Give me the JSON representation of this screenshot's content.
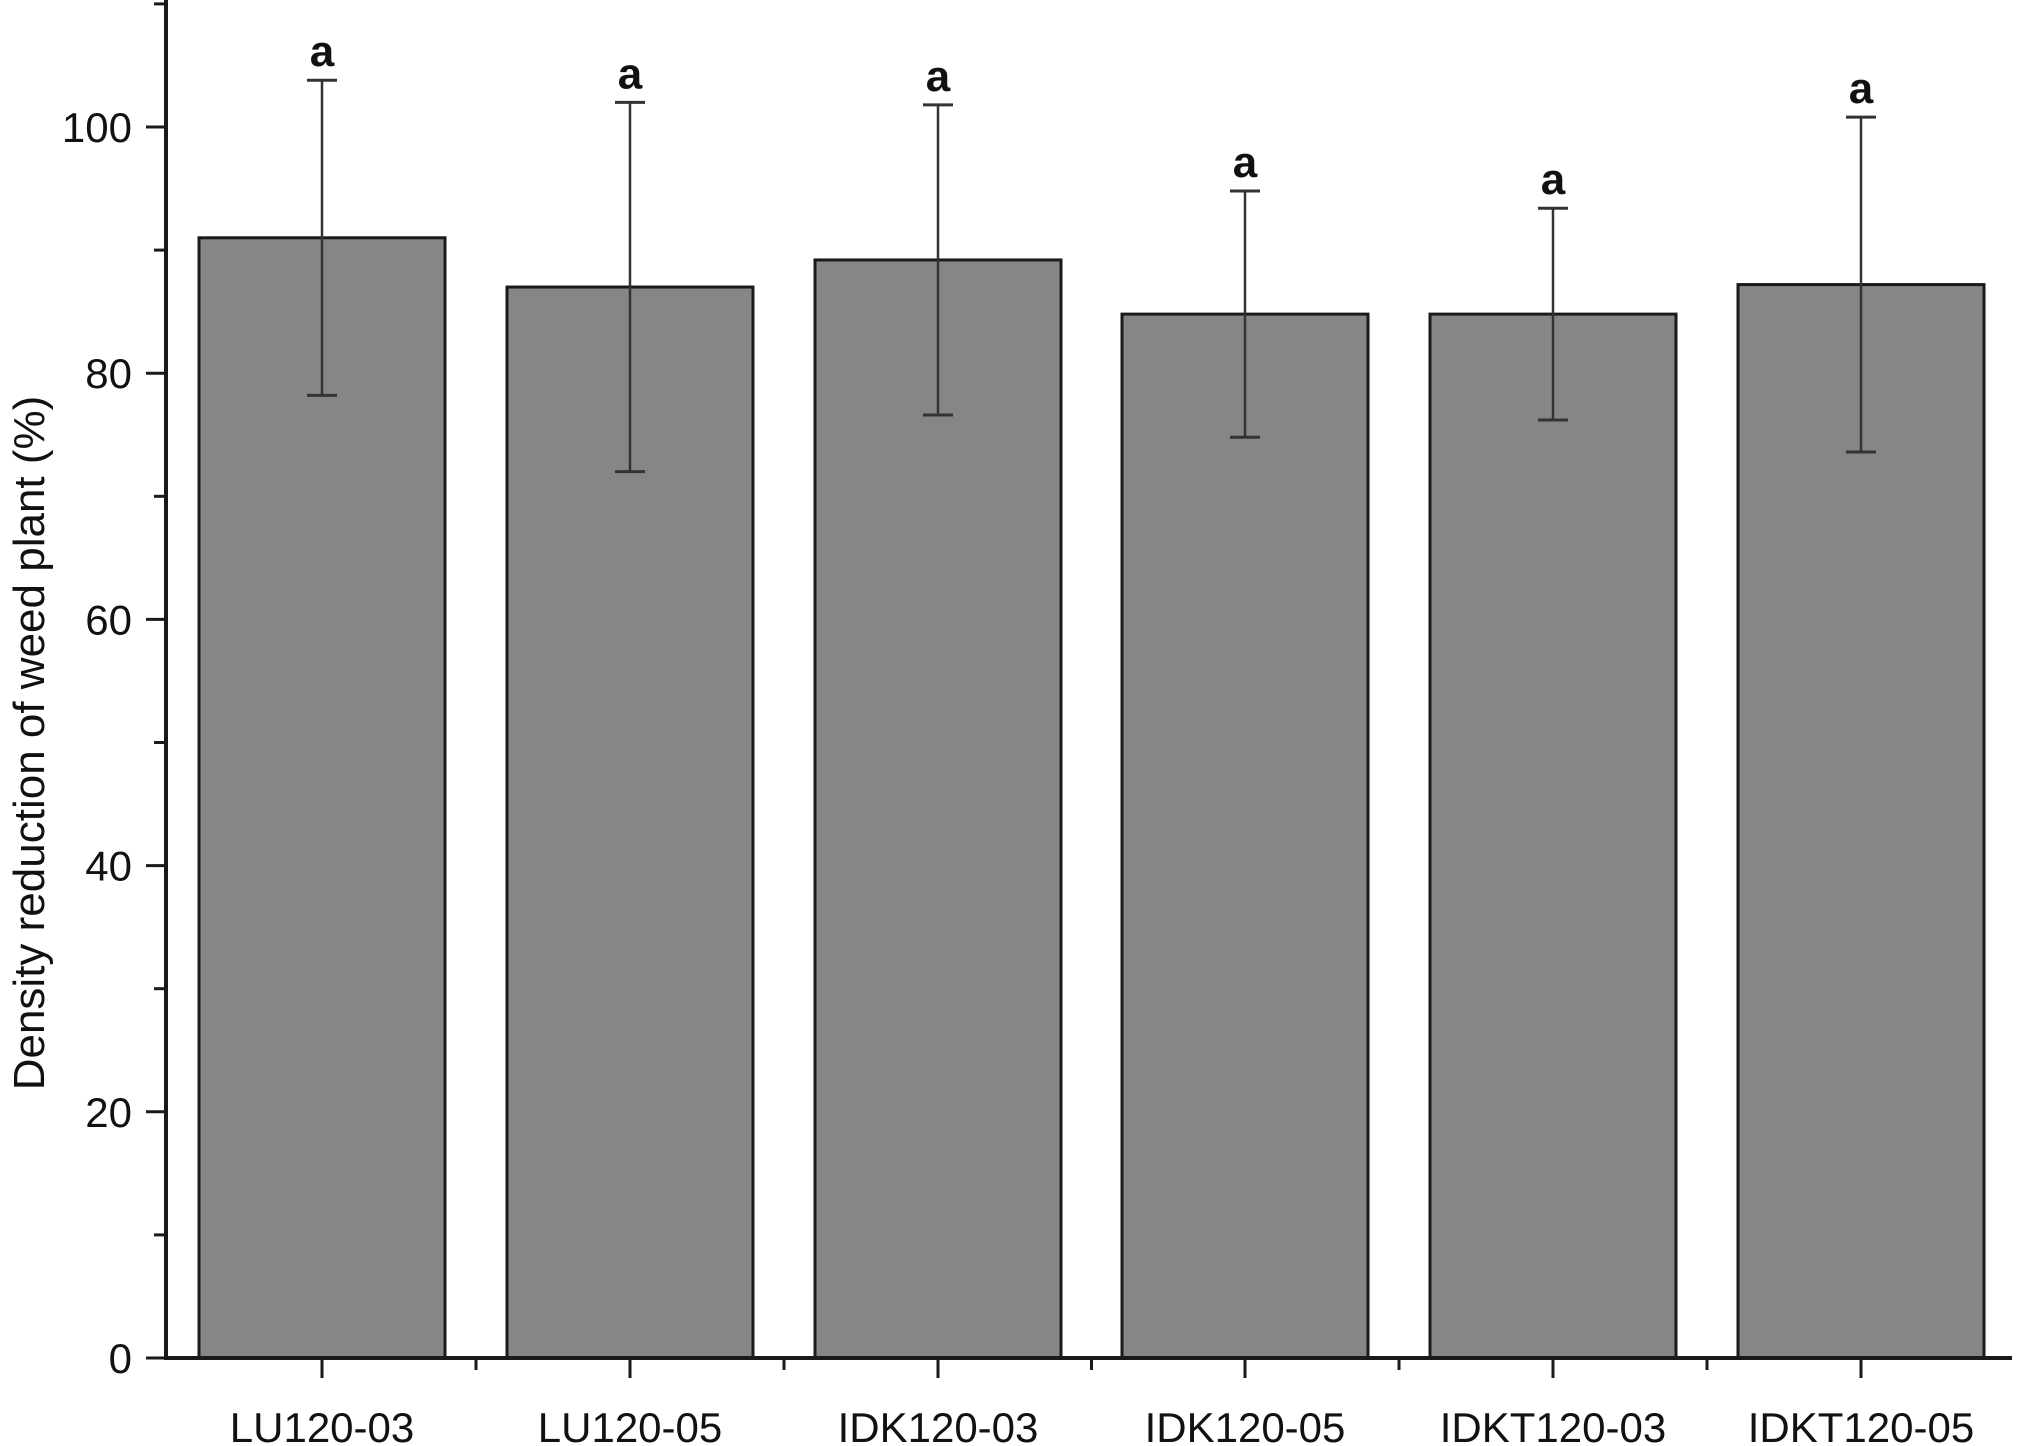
{
  "chart_data": {
    "type": "bar",
    "title": "",
    "xlabel": "",
    "ylabel": "Density reduction of weed plant (%)",
    "categories": [
      "LU120-03",
      "LU120-05",
      "IDK120-03",
      "IDK120-05",
      "IDKT120-03",
      "IDKT120-05"
    ],
    "values": [
      91.0,
      87.0,
      89.2,
      84.8,
      84.8,
      87.2
    ],
    "error_bars": [
      12.8,
      15.0,
      12.6,
      10.0,
      8.6,
      13.6
    ],
    "significance_labels": [
      "a",
      "a",
      "a",
      "a",
      "a",
      "a"
    ],
    "ylim": [
      0,
      110
    ],
    "yticks": [
      0,
      20,
      40,
      60,
      80,
      100
    ],
    "ytick_labels": [
      "0",
      "20",
      "40",
      "60",
      "80",
      "100"
    ],
    "grid": false,
    "legend": "none",
    "colors": {
      "bar_fill": "#868686",
      "bar_stroke": "#1a1a1a",
      "axis": "#1a1a1a",
      "error_bar": "#333333"
    }
  }
}
